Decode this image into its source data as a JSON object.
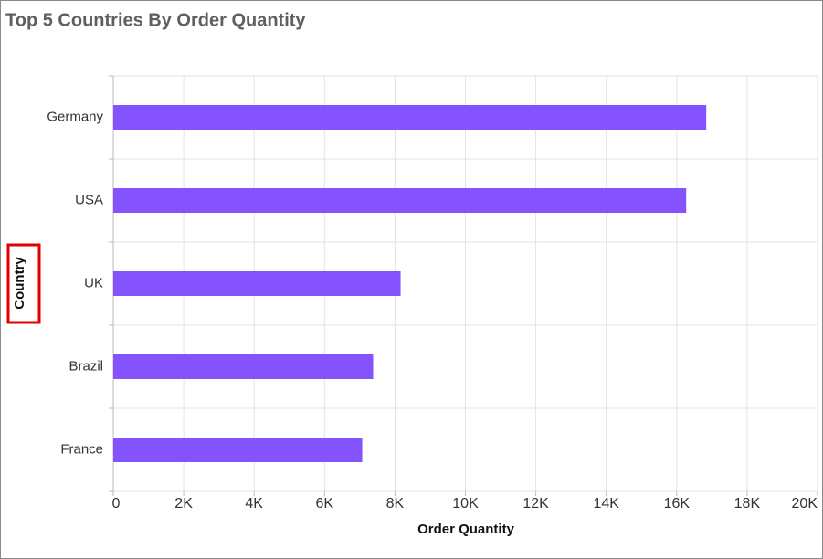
{
  "chart_data": {
    "type": "bar",
    "orientation": "horizontal",
    "title": "Top 5 Countries By Order Quantity",
    "x_label": "Order Quantity",
    "y_label": "Country",
    "categories": [
      "Germany",
      "USA",
      "UK",
      "Brazil",
      "France"
    ],
    "values": [
      16840,
      16270,
      8160,
      7380,
      7070
    ],
    "color": "#8553fe",
    "xlim": [
      0,
      20000
    ],
    "xticks": [
      0,
      {
        "value": 2000,
        "label": "2K"
      },
      {
        "value": 4000,
        "label": "4K"
      },
      {
        "value": 6000,
        "label": "6K"
      },
      {
        "value": 8000,
        "label": "8K"
      },
      {
        "value": 10000,
        "label": "10K"
      },
      {
        "value": 12000,
        "label": "12K"
      },
      {
        "value": 14000,
        "label": "14K"
      },
      {
        "value": 16000,
        "label": "16K"
      },
      {
        "value": 18000,
        "label": "18K"
      },
      {
        "value": 20000,
        "label": "20K"
      }
    ],
    "grid": true
  }
}
